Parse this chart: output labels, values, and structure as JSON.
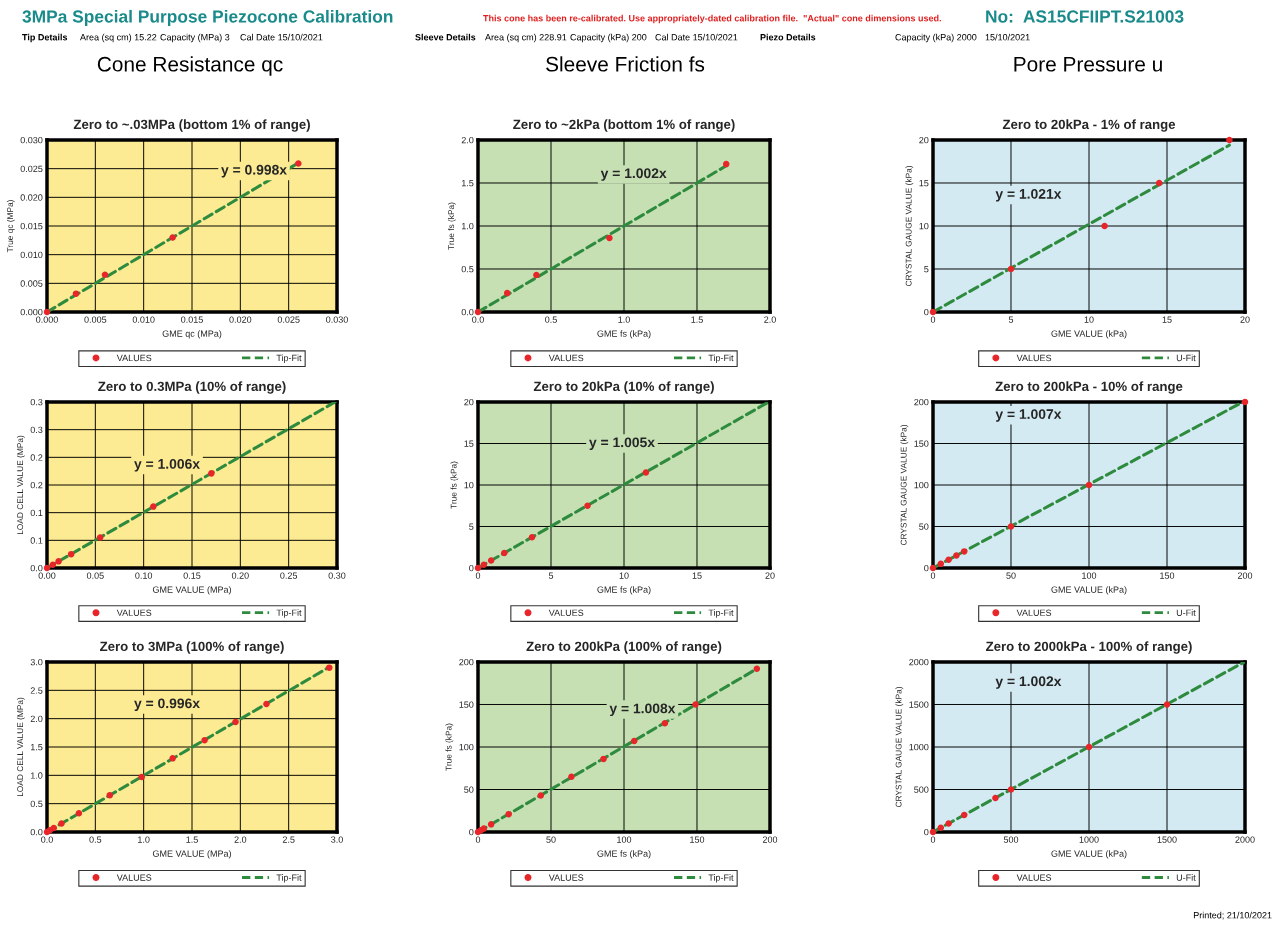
{
  "chart_data": [
    {
      "type": "other",
      "title": "3MPa Special Purpose Piezocone Calibration",
      "annotations": [
        "This cone has been re-calibrated. Use appropriately-dated calibration file.  \"Actual\" cone dimensions used.",
        "No:  AS15CFIIPT.S21003",
        "Tip Details",
        "Area (sq cm) 15.22",
        "Capacity (MPa) 3",
        "Cal Date 15/10/2021",
        "Sleeve Details",
        "Area (sq cm) 228.91",
        "Capacity (kPa) 200",
        "Cal Date 15/10/2021",
        "Piezo Details",
        "Capacity (kPa) 2000",
        "15/10/2021",
        "Cone Resistance qc",
        "Sleeve Friction fs",
        "Pore Pressure u",
        "Printed; 21/10/2021"
      ]
    },
    {
      "type": "scatter",
      "title": "Zero to ~.03MPa (bottom 1% of range)",
      "xlabel": "GME qc (MPa)",
      "ylabel": "True qc (MPa)",
      "annotations": [
        "y = 0.998x"
      ],
      "grid": true,
      "legend": "bottom",
      "xlim": [
        0,
        0.03
      ],
      "ylim": [
        0,
        0.03
      ],
      "xticks": [
        {
          "value": 0,
          "label": "0.000"
        },
        {
          "value": 0.005,
          "label": "0.005"
        },
        {
          "value": 0.01,
          "label": "0.010"
        },
        {
          "value": 0.015,
          "label": "0.015"
        },
        {
          "value": 0.02,
          "label": "0.020"
        },
        {
          "value": 0.025,
          "label": "0.025"
        },
        {
          "value": 0.03,
          "label": "0.030"
        }
      ],
      "yticks": [
        {
          "value": 0,
          "label": "0.000"
        },
        {
          "value": 0.005,
          "label": "0.005"
        },
        {
          "value": 0.01,
          "label": "0.010"
        },
        {
          "value": 0.015,
          "label": "0.015"
        },
        {
          "value": 0.02,
          "label": "0.020"
        },
        {
          "value": 0.025,
          "label": "0.025"
        },
        {
          "value": 0.03,
          "label": "0.030"
        }
      ],
      "series": [
        {
          "name": "VALUES",
          "type": "scatter",
          "marker": "circle",
          "color": "#e8262a",
          "x": [
            0,
            0.003,
            0.006,
            0.013,
            0.026
          ],
          "values": [
            0,
            0.0032,
            0.0065,
            0.013,
            0.0259
          ]
        },
        {
          "name": "Tip-Fit",
          "type": "line",
          "line_style": "dashed",
          "color": "#2e8b3e",
          "x": [
            0,
            0.026
          ],
          "values": [
            0,
            0.026
          ]
        }
      ]
    },
    {
      "type": "scatter",
      "title": "Zero to ~2kPa (bottom 1% of range)",
      "xlabel": "GME fs (kPa)",
      "ylabel": "True fs (kPa)",
      "annotations": [
        "y = 1.002x"
      ],
      "grid": true,
      "legend": "bottom",
      "xlim": [
        0,
        2
      ],
      "ylim": [
        0,
        2
      ],
      "xticks": [
        {
          "value": 0,
          "label": "0.0"
        },
        0.5,
        {
          "value": 1,
          "label": "1.0"
        },
        1.5,
        {
          "value": 2,
          "label": "2.0"
        }
      ],
      "yticks": [
        {
          "value": 0,
          "label": "0.0"
        },
        0.5,
        {
          "value": 1,
          "label": "1.0"
        },
        1.5,
        {
          "value": 2,
          "label": "2.0"
        }
      ],
      "series": [
        {
          "name": "VALUES",
          "type": "scatter",
          "marker": "circle",
          "color": "#e8262a",
          "x": [
            0,
            0.2,
            0.4,
            0.9,
            1.7
          ],
          "values": [
            0,
            0.22,
            0.43,
            0.86,
            1.72
          ]
        },
        {
          "name": "Tip-Fit",
          "type": "line",
          "line_style": "dashed",
          "color": "#2e8b3e",
          "x": [
            0,
            1.7
          ],
          "values": [
            0,
            1.7
          ]
        }
      ]
    },
    {
      "type": "scatter",
      "title": "Zero to 20kPa - 1% of range",
      "xlabel": "GME VALUE (kPa)",
      "ylabel": "CRYSTAL GAUGE VALUE (kPa)",
      "annotations": [
        "y = 1.021x"
      ],
      "grid": true,
      "legend": "bottom",
      "xlim": [
        0,
        20
      ],
      "ylim": [
        0,
        20
      ],
      "xticks": [
        0,
        5,
        10,
        15,
        20
      ],
      "yticks": [
        0,
        5,
        10,
        15,
        20
      ],
      "series": [
        {
          "name": "VALUES",
          "type": "scatter",
          "marker": "circle",
          "color": "#e8262a",
          "x": [
            0,
            5,
            11,
            14.5,
            19
          ],
          "values": [
            0,
            5,
            10,
            15,
            20
          ]
        },
        {
          "name": "U-Fit",
          "type": "line",
          "line_style": "dashed",
          "color": "#2e8b3e",
          "x": [
            0,
            19
          ],
          "values": [
            0,
            19.4
          ]
        }
      ]
    },
    {
      "type": "scatter",
      "title": "Zero to 0.3MPa (10% of range)",
      "xlabel": "GME VALUE (MPa)",
      "ylabel": "LOAD CELL VALUE (MPa)",
      "annotations": [
        "y = 1.006x"
      ],
      "grid": true,
      "legend": "bottom",
      "xlim": [
        0,
        0.3
      ],
      "ylim": [
        0,
        0.3
      ],
      "xticks": [
        {
          "value": 0,
          "label": "0.00"
        },
        0.05,
        {
          "value": 0.1,
          "label": "0.10"
        },
        0.15,
        {
          "value": 0.2,
          "label": "0.20"
        },
        0.25,
        {
          "value": 0.3,
          "label": "0.30"
        }
      ],
      "yticks": [
        {
          "value": 0,
          "label": "0.0"
        },
        {
          "value": 0.05,
          "label": "0.1"
        },
        0.1,
        {
          "value": 0.15,
          "label": "0.2"
        },
        0.2,
        {
          "value": 0.25,
          "label": "0.3"
        },
        0.3
      ],
      "series": [
        {
          "name": "VALUES",
          "type": "scatter",
          "marker": "circle",
          "color": "#e8262a",
          "x": [
            0,
            0.006,
            0.012,
            0.025,
            0.055,
            0.11,
            0.17
          ],
          "values": [
            0,
            0.006,
            0.012,
            0.025,
            0.055,
            0.111,
            0.171
          ]
        },
        {
          "name": "Tip-Fit",
          "type": "line",
          "line_style": "dashed",
          "color": "#2e8b3e",
          "x": [
            0,
            0.298
          ],
          "values": [
            0,
            0.3
          ]
        }
      ]
    },
    {
      "type": "scatter",
      "title": "Zero to 20kPa (10% of range)",
      "xlabel": "GME fs (kPa)",
      "ylabel": "True fs (kPa)",
      "annotations": [
        "y = 1.005x"
      ],
      "grid": true,
      "legend": "bottom",
      "xlim": [
        0,
        20
      ],
      "ylim": [
        0,
        20
      ],
      "xticks": [
        0,
        5,
        10,
        15,
        20
      ],
      "yticks": [
        0,
        5,
        10,
        15,
        20
      ],
      "series": [
        {
          "name": "VALUES",
          "type": "scatter",
          "marker": "circle",
          "color": "#e8262a",
          "x": [
            0,
            0.4,
            0.9,
            1.8,
            3.7,
            7.5,
            11.5
          ],
          "values": [
            0,
            0.4,
            0.9,
            1.8,
            3.7,
            7.5,
            11.5
          ]
        },
        {
          "name": "Tip-Fit",
          "type": "line",
          "line_style": "dashed",
          "color": "#2e8b3e",
          "x": [
            0,
            19.9
          ],
          "values": [
            0,
            20
          ]
        }
      ]
    },
    {
      "type": "scatter",
      "title": "Zero to 200kPa - 10% of range",
      "xlabel": "GME VALUE (kPa)",
      "ylabel": "CRYSTAL GAUGE VALUE (kPa)",
      "annotations": [
        "y = 1.007x"
      ],
      "grid": true,
      "legend": "bottom",
      "xlim": [
        0,
        200
      ],
      "ylim": [
        0,
        200
      ],
      "xticks": [
        0,
        50,
        100,
        150,
        200
      ],
      "yticks": [
        0,
        50,
        100,
        150,
        200
      ],
      "series": [
        {
          "name": "VALUES",
          "type": "scatter",
          "marker": "circle",
          "color": "#e8262a",
          "x": [
            0,
            5,
            10,
            15,
            20,
            50,
            100,
            200
          ],
          "values": [
            0,
            5,
            10,
            15,
            20,
            50,
            100,
            200
          ]
        },
        {
          "name": "U-Fit",
          "type": "line",
          "line_style": "dashed",
          "color": "#2e8b3e",
          "x": [
            0,
            198.6
          ],
          "values": [
            0,
            200
          ]
        }
      ]
    },
    {
      "type": "scatter",
      "title": "Zero to 3MPa (100% of range)",
      "xlabel": "GME VALUE (MPa)",
      "ylabel": "LOAD CELL VALUE (MPa)",
      "annotations": [
        "y = 0.996x"
      ],
      "grid": true,
      "legend": "bottom",
      "xlim": [
        0,
        3
      ],
      "ylim": [
        0,
        3
      ],
      "xticks": [
        {
          "value": 0,
          "label": "0.0"
        },
        0.5,
        {
          "value": 1,
          "label": "1.0"
        },
        1.5,
        {
          "value": 2,
          "label": "2.0"
        },
        2.5,
        {
          "value": 3,
          "label": "3.0"
        }
      ],
      "yticks": [
        {
          "value": 0,
          "label": "0.0"
        },
        0.5,
        {
          "value": 1,
          "label": "1.0"
        },
        1.5,
        {
          "value": 2,
          "label": "2.0"
        },
        2.5,
        {
          "value": 3,
          "label": "3.0"
        }
      ],
      "series": [
        {
          "name": "VALUES",
          "type": "scatter",
          "marker": "circle",
          "color": "#e8262a",
          "x": [
            0,
            0.03,
            0.07,
            0.15,
            0.33,
            0.65,
            0.98,
            1.3,
            1.63,
            1.95,
            2.27,
            2.92
          ],
          "values": [
            0,
            0.03,
            0.07,
            0.15,
            0.33,
            0.65,
            0.97,
            1.3,
            1.62,
            1.94,
            2.26,
            2.9
          ]
        },
        {
          "name": "Tip-Fit",
          "type": "line",
          "line_style": "dashed",
          "color": "#2e8b3e",
          "x": [
            0,
            2.92
          ],
          "values": [
            0,
            2.91
          ]
        }
      ]
    },
    {
      "type": "scatter",
      "title": "Zero to 200kPa (100% of range)",
      "xlabel": "GME fs (kPa)",
      "ylabel": "True fs (kPa)",
      "annotations": [
        "y = 1.008x"
      ],
      "grid": true,
      "legend": "bottom",
      "xlim": [
        0,
        200
      ],
      "ylim": [
        0,
        200
      ],
      "xticks": [
        0,
        50,
        100,
        150,
        200
      ],
      "yticks": [
        0,
        50,
        100,
        150,
        200
      ],
      "series": [
        {
          "name": "VALUES",
          "type": "scatter",
          "marker": "circle",
          "color": "#e8262a",
          "x": [
            0,
            2,
            4,
            9,
            21,
            43,
            64,
            86,
            107,
            128,
            149,
            191
          ],
          "values": [
            0,
            2,
            4,
            9,
            21,
            43,
            65,
            86,
            107,
            128,
            150,
            192
          ]
        },
        {
          "name": "Tip-Fit",
          "type": "line",
          "line_style": "dashed",
          "color": "#2e8b3e",
          "x": [
            0,
            191
          ],
          "values": [
            0,
            192
          ]
        }
      ]
    },
    {
      "type": "scatter",
      "title": "Zero to 2000kPa - 100% of range)",
      "xlabel": "GME VALUE (kPa)",
      "ylabel": "CRYSTAL GAUGE VALUE (kPa)",
      "annotations": [
        "y = 1.002x"
      ],
      "grid": true,
      "legend": "bottom",
      "xlim": [
        0,
        2000
      ],
      "ylim": [
        0,
        2000
      ],
      "xticks": [
        0,
        500,
        1000,
        1500,
        2000
      ],
      "yticks": [
        0,
        500,
        1000,
        1500,
        2000
      ],
      "series": [
        {
          "name": "VALUES",
          "type": "scatter",
          "marker": "circle",
          "color": "#e8262a",
          "x": [
            0,
            50,
            100,
            200,
            400,
            500,
            1000,
            1500
          ],
          "values": [
            0,
            50,
            100,
            200,
            400,
            500,
            1000,
            1500
          ]
        },
        {
          "name": "U-Fit",
          "type": "line",
          "line_style": "dashed",
          "color": "#2e8b3e",
          "x": [
            0,
            1996
          ],
          "values": [
            0,
            2000
          ]
        }
      ]
    }
  ]
}
